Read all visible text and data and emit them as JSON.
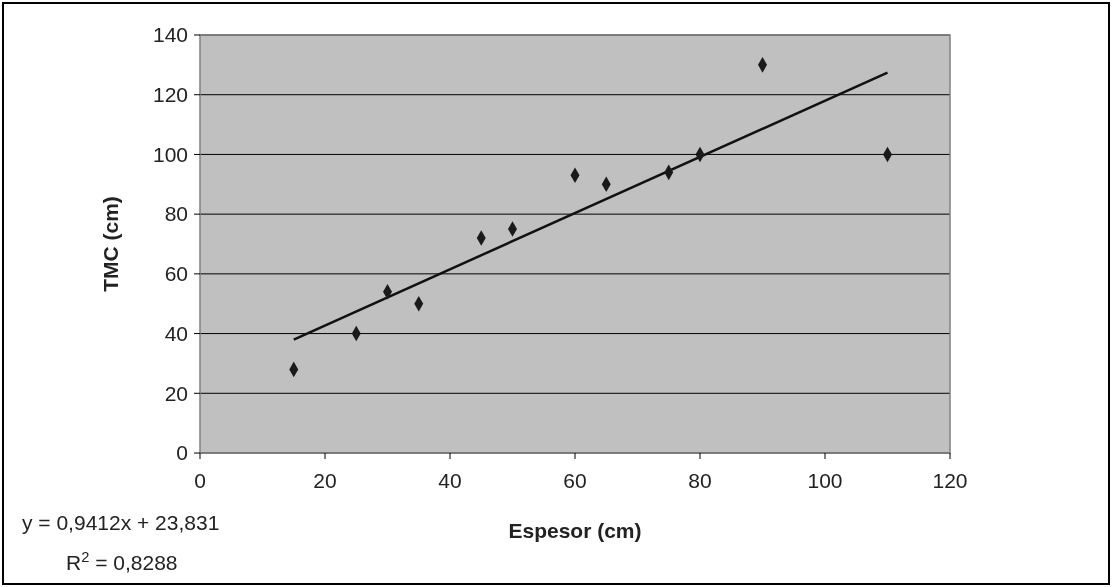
{
  "chart_data": {
    "type": "scatter",
    "xlabel": "Espesor (cm)",
    "ylabel": "TMC (cm)",
    "xlim": [
      0,
      120
    ],
    "ylim": [
      0,
      140
    ],
    "xticks": [
      0,
      20,
      40,
      60,
      80,
      100,
      120
    ],
    "yticks": [
      0,
      20,
      40,
      60,
      80,
      100,
      120,
      140
    ],
    "grid": "y",
    "series": [
      {
        "color": "#1a1a1a",
        "marker": "diamond",
        "x": [
          15,
          25,
          30,
          35,
          45,
          50,
          60,
          65,
          75,
          80,
          90,
          110
        ],
        "values": [
          28,
          40,
          54,
          50,
          72,
          75,
          93,
          90,
          94,
          100,
          130,
          100
        ]
      },
      {
        "type": "line",
        "marker": "none",
        "color": "#111111",
        "x": [
          15,
          110
        ],
        "values": [
          38,
          127.4
        ]
      }
    ],
    "annotations": [
      "y = 0,9412x + 23,831",
      "R$^{2}$ = 0,8288"
    ]
  }
}
